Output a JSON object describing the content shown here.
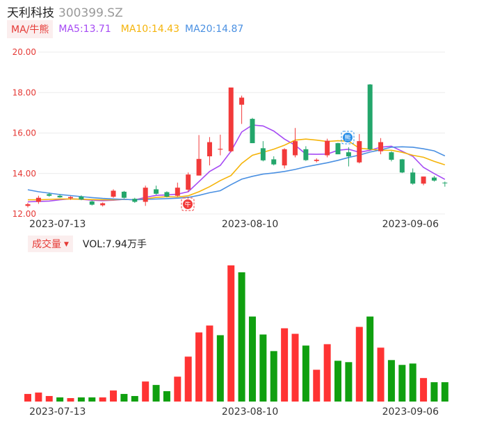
{
  "header": {
    "name": "天利科技",
    "code": "300399.SZ"
  },
  "ma_bar": {
    "tag": "MA/牛熊",
    "ma5": "MA5:13.71",
    "ma10": "MA10:14.43",
    "ma20": "MA20:14.87"
  },
  "volume_bar": {
    "tag": "成交量",
    "value": "VOL:7.94万手"
  },
  "markers": {
    "bull": "牛",
    "bear": "熊"
  },
  "colors": {
    "up": "#f23a3a",
    "down": "#23a66b",
    "ma5": "#a64bf4",
    "ma10": "#f5b40a",
    "ma20": "#4a90e2",
    "vol_up": "#ff3333",
    "vol_down": "#10a010"
  },
  "chart_data": [
    {
      "type": "candlestick",
      "ylim": [
        12.0,
        20.0
      ],
      "yticks": [
        "12.00",
        "14.00",
        "16.00",
        "18.00",
        "20.00"
      ],
      "xtick_labels": [
        "2023-07-13",
        "2023-08-10",
        "2023-09-06"
      ],
      "xtick_indices": [
        2,
        20,
        35
      ],
      "grid": true,
      "candles": [
        {
          "o": 12.4,
          "h": 12.55,
          "l": 12.32,
          "c": 12.48
        },
        {
          "o": 12.6,
          "h": 12.9,
          "l": 12.5,
          "c": 12.8
        },
        {
          "o": 12.98,
          "h": 13.05,
          "l": 12.85,
          "c": 12.9
        },
        {
          "o": 12.9,
          "h": 12.98,
          "l": 12.8,
          "c": 12.82
        },
        {
          "o": 12.78,
          "h": 12.88,
          "l": 12.7,
          "c": 12.84
        },
        {
          "o": 12.86,
          "h": 12.92,
          "l": 12.68,
          "c": 12.72
        },
        {
          "o": 12.62,
          "h": 12.66,
          "l": 12.42,
          "c": 12.46
        },
        {
          "o": 12.43,
          "h": 12.57,
          "l": 12.37,
          "c": 12.53
        },
        {
          "o": 12.85,
          "h": 13.22,
          "l": 12.8,
          "c": 13.15
        },
        {
          "o": 13.1,
          "h": 13.14,
          "l": 12.76,
          "c": 12.8
        },
        {
          "o": 12.75,
          "h": 12.8,
          "l": 12.55,
          "c": 12.6
        },
        {
          "o": 12.6,
          "h": 13.4,
          "l": 12.4,
          "c": 13.3
        },
        {
          "o": 13.22,
          "h": 13.4,
          "l": 12.95,
          "c": 13.0
        },
        {
          "o": 13.08,
          "h": 13.12,
          "l": 12.82,
          "c": 12.86
        },
        {
          "o": 12.9,
          "h": 13.55,
          "l": 12.85,
          "c": 13.3
        },
        {
          "o": 13.2,
          "h": 14.05,
          "l": 13.1,
          "c": 13.95
        },
        {
          "o": 13.9,
          "h": 15.9,
          "l": 13.9,
          "c": 14.72
        },
        {
          "o": 14.85,
          "h": 15.8,
          "l": 14.4,
          "c": 15.55
        },
        {
          "o": 15.18,
          "h": 15.92,
          "l": 14.9,
          "c": 15.22
        },
        {
          "o": 15.1,
          "h": 18.25,
          "l": 15.05,
          "c": 18.25
        },
        {
          "o": 17.4,
          "h": 17.85,
          "l": 16.45,
          "c": 17.75
        },
        {
          "o": 16.7,
          "h": 16.75,
          "l": 15.5,
          "c": 15.5
        },
        {
          "o": 15.25,
          "h": 15.6,
          "l": 14.6,
          "c": 14.65
        },
        {
          "o": 14.7,
          "h": 14.85,
          "l": 14.4,
          "c": 14.45
        },
        {
          "o": 14.4,
          "h": 15.25,
          "l": 14.25,
          "c": 15.2
        },
        {
          "o": 14.9,
          "h": 16.25,
          "l": 14.8,
          "c": 15.6
        },
        {
          "o": 15.2,
          "h": 15.35,
          "l": 14.62,
          "c": 14.66
        },
        {
          "o": 14.62,
          "h": 14.75,
          "l": 14.55,
          "c": 14.68
        },
        {
          "o": 14.9,
          "h": 15.72,
          "l": 14.8,
          "c": 15.62
        },
        {
          "o": 15.5,
          "h": 15.52,
          "l": 14.95,
          "c": 14.95
        },
        {
          "o": 15.05,
          "h": 15.3,
          "l": 14.35,
          "c": 14.85
        },
        {
          "o": 14.55,
          "h": 15.95,
          "l": 14.5,
          "c": 15.6
        },
        {
          "o": 18.4,
          "h": 18.42,
          "l": 15.15,
          "c": 15.2
        },
        {
          "o": 15.1,
          "h": 15.75,
          "l": 14.95,
          "c": 15.55
        },
        {
          "o": 15.05,
          "h": 15.1,
          "l": 14.6,
          "c": 14.68
        },
        {
          "o": 14.7,
          "h": 14.72,
          "l": 14.02,
          "c": 14.05
        },
        {
          "o": 14.05,
          "h": 14.25,
          "l": 13.45,
          "c": 13.5
        },
        {
          "o": 13.5,
          "h": 13.85,
          "l": 13.42,
          "c": 13.85
        },
        {
          "o": 13.8,
          "h": 13.88,
          "l": 13.6,
          "c": 13.65
        },
        {
          "o": 13.55,
          "h": 13.6,
          "l": 13.35,
          "c": 13.52
        }
      ],
      "series": [
        {
          "name": "MA5",
          "values": [
            12.6,
            12.62,
            12.64,
            12.7,
            12.75,
            12.72,
            12.68,
            12.66,
            12.68,
            12.72,
            12.7,
            12.82,
            12.92,
            12.94,
            12.98,
            13.1,
            13.6,
            14.1,
            14.4,
            15.1,
            16.05,
            16.4,
            16.35,
            16.1,
            15.7,
            15.4,
            14.96,
            14.95,
            14.96,
            15.15,
            15.2,
            15.05,
            15.15,
            15.3,
            15.35,
            15.1,
            14.85,
            14.3,
            14.0,
            13.71
          ]
        },
        {
          "name": "MA10",
          "values": [
            12.7,
            12.7,
            12.72,
            12.74,
            12.74,
            12.73,
            12.71,
            12.7,
            12.7,
            12.72,
            12.7,
            12.75,
            12.82,
            12.85,
            12.84,
            12.9,
            13.1,
            13.35,
            13.65,
            13.9,
            14.5,
            14.9,
            15.05,
            15.2,
            15.4,
            15.65,
            15.7,
            15.65,
            15.58,
            15.62,
            15.6,
            15.25,
            15.2,
            15.15,
            15.15,
            15.05,
            14.9,
            14.8,
            14.6,
            14.43
          ]
        },
        {
          "name": "MA20",
          "values": [
            13.2,
            13.1,
            13.03,
            12.96,
            12.91,
            12.86,
            12.81,
            12.77,
            12.74,
            12.72,
            12.7,
            12.72,
            12.74,
            12.76,
            12.78,
            12.82,
            12.92,
            13.05,
            13.15,
            13.45,
            13.72,
            13.86,
            13.97,
            14.03,
            14.1,
            14.2,
            14.33,
            14.43,
            14.53,
            14.65,
            14.79,
            14.91,
            15.06,
            15.17,
            15.3,
            15.32,
            15.3,
            15.22,
            15.12,
            14.87
          ]
        }
      ]
    },
    {
      "type": "bar",
      "title": "",
      "xtick_labels": [
        "2023-07-13",
        "2023-08-10",
        "2023-09-06"
      ],
      "xtick_indices": [
        2,
        20,
        35
      ],
      "values": [
        0.55,
        0.65,
        0.4,
        0.3,
        0.25,
        0.3,
        0.3,
        0.3,
        0.8,
        0.55,
        0.4,
        1.45,
        1.2,
        0.75,
        1.8,
        3.25,
        5.0,
        5.5,
        4.8,
        9.85,
        9.35,
        6.15,
        4.85,
        3.65,
        5.3,
        4.9,
        4.05,
        2.3,
        4.15,
        2.95,
        2.85,
        5.4,
        6.15,
        3.9,
        3.0,
        2.65,
        2.75,
        1.7,
        1.4,
        1.4
      ],
      "directions": [
        "up",
        "up",
        "up",
        "down",
        "up",
        "down",
        "down",
        "up",
        "up",
        "down",
        "down",
        "up",
        "down",
        "down",
        "up",
        "up",
        "up",
        "up",
        "down",
        "up",
        "down",
        "down",
        "down",
        "down",
        "up",
        "up",
        "down",
        "up",
        "up",
        "down",
        "down",
        "up",
        "down",
        "up",
        "down",
        "down",
        "down",
        "up",
        "down",
        "down"
      ]
    }
  ]
}
